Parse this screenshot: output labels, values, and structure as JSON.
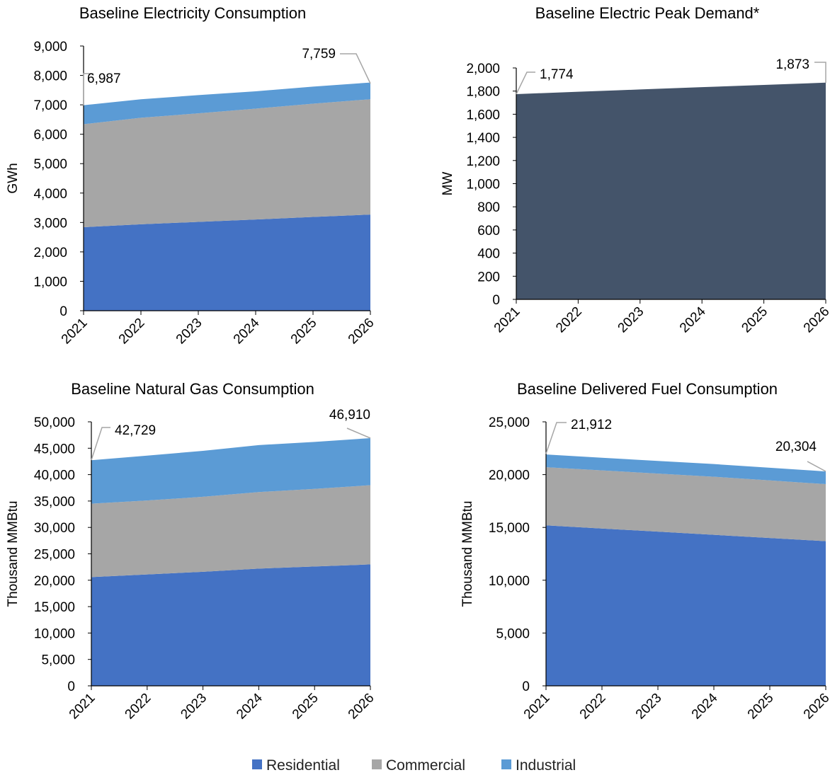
{
  "colors": {
    "residential": "#4472C4",
    "commercial": "#A6A6A6",
    "industrial": "#5B9BD5",
    "peak": "#44546A",
    "callout_line": "#A6A6A6"
  },
  "legend": [
    {
      "label": "Residential",
      "color": "#4472C4"
    },
    {
      "label": "Commercial",
      "color": "#A6A6A6"
    },
    {
      "label": "Industrial",
      "color": "#5B9BD5"
    }
  ],
  "chart_data": [
    {
      "type": "area",
      "stacked": true,
      "title": "Baseline Electricity Consumption",
      "ylabel": "GWh",
      "ylim": [
        0,
        9000
      ],
      "yticks": [
        0,
        1000,
        2000,
        3000,
        4000,
        5000,
        6000,
        7000,
        8000,
        9000
      ],
      "ytick_labels": [
        "0",
        "1,000",
        "2,000",
        "3,000",
        "4,000",
        "5,000",
        "6,000",
        "7,000",
        "8,000",
        "9,000"
      ],
      "x": [
        "2021",
        "2022",
        "2023",
        "2024",
        "2025",
        "2026"
      ],
      "series": [
        {
          "name": "Residential",
          "values": [
            2840,
            2940,
            3020,
            3100,
            3190,
            3270
          ]
        },
        {
          "name": "Commercial",
          "values": [
            3500,
            3620,
            3690,
            3770,
            3850,
            3920
          ]
        },
        {
          "name": "Industrial",
          "values": [
            647,
            630,
            620,
            590,
            580,
            569
          ]
        }
      ],
      "annotations": [
        "6,987",
        "7,759"
      ]
    },
    {
      "type": "area",
      "stacked": false,
      "title": "Baseline Electric Peak Demand*",
      "ylabel": "MW",
      "ylim": [
        0,
        2000
      ],
      "yticks": [
        0,
        200,
        400,
        600,
        800,
        1000,
        1200,
        1400,
        1600,
        1800,
        2000
      ],
      "ytick_labels": [
        "0",
        "200",
        "400",
        "600",
        "800",
        "1,000",
        "1,200",
        "1,400",
        "1,600",
        "1,800",
        "2,000"
      ],
      "x": [
        "2021",
        "2022",
        "2023",
        "2024",
        "2025",
        "2026"
      ],
      "series": [
        {
          "values": [
            1774,
            1794,
            1814,
            1834,
            1853,
            1873
          ]
        }
      ],
      "annotations": [
        "1,774",
        "1,873"
      ]
    },
    {
      "type": "area",
      "stacked": true,
      "title": "Baseline Natural Gas Consumption",
      "ylabel": "Thousand MMBtu",
      "ylim": [
        0,
        50000
      ],
      "yticks": [
        0,
        5000,
        10000,
        15000,
        20000,
        25000,
        30000,
        35000,
        40000,
        45000,
        50000
      ],
      "ytick_labels": [
        "0",
        "5,000",
        "10,000",
        "15,000",
        "20,000",
        "25,000",
        "30,000",
        "35,000",
        "40,000",
        "45,000",
        "50,000"
      ],
      "x": [
        "2021",
        "2022",
        "2023",
        "2024",
        "2025",
        "2026"
      ],
      "series": [
        {
          "name": "Residential",
          "values": [
            20600,
            21100,
            21600,
            22200,
            22600,
            23000
          ]
        },
        {
          "name": "Commercial",
          "values": [
            13900,
            14000,
            14200,
            14500,
            14700,
            15000
          ]
        },
        {
          "name": "Industrial",
          "values": [
            8229,
            8500,
            8700,
            8900,
            8900,
            8910
          ]
        }
      ],
      "annotations": [
        "42,729",
        "46,910"
      ]
    },
    {
      "type": "area",
      "stacked": true,
      "title": "Baseline Delivered Fuel Consumption",
      "ylabel": "Thousand MMBtu",
      "ylim": [
        0,
        25000
      ],
      "yticks": [
        0,
        5000,
        10000,
        15000,
        20000,
        25000
      ],
      "ytick_labels": [
        "0",
        "5,000",
        "10,000",
        "15,000",
        "20,000",
        "25,000"
      ],
      "x": [
        "2021",
        "2022",
        "2023",
        "2024",
        "2025",
        "2026"
      ],
      "series": [
        {
          "name": "Residential",
          "values": [
            15200,
            14900,
            14600,
            14300,
            14000,
            13700
          ]
        },
        {
          "name": "Commercial",
          "values": [
            5500,
            5500,
            5500,
            5500,
            5450,
            5400
          ]
        },
        {
          "name": "Industrial",
          "values": [
            1212,
            1200,
            1200,
            1200,
            1200,
            1204
          ]
        }
      ],
      "annotations": [
        "21,912",
        "20,304"
      ]
    }
  ]
}
